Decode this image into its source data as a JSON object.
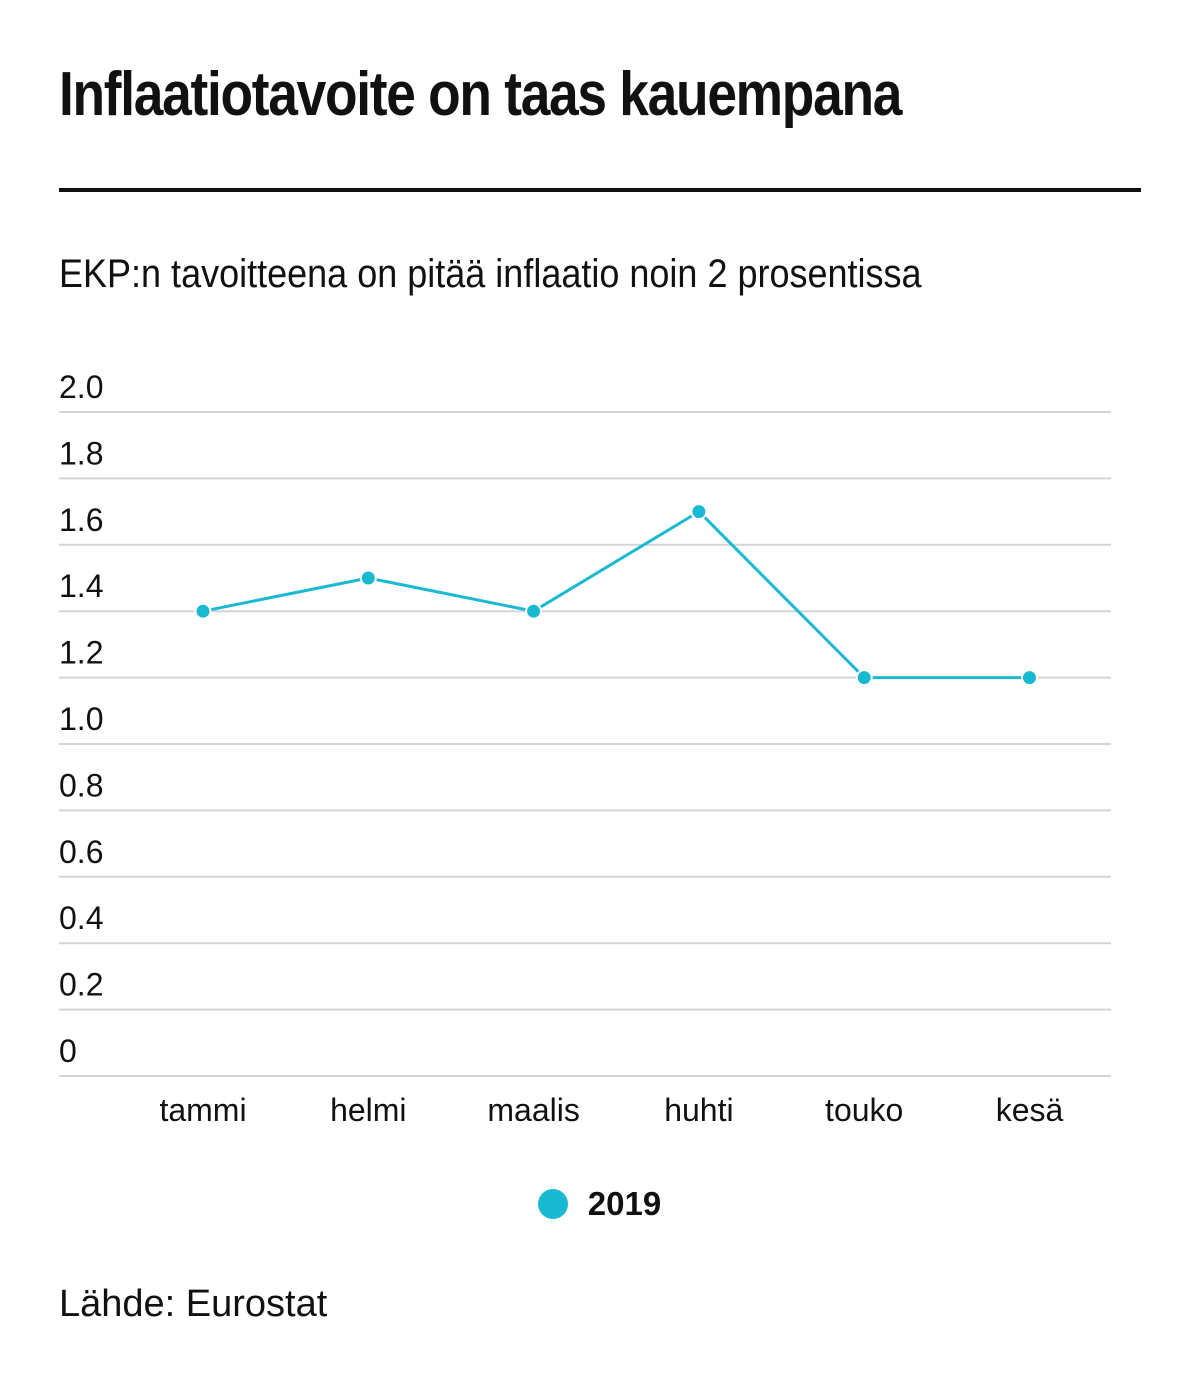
{
  "title": "Inflaatiotavoite on taas kauempana",
  "subtitle": "EKP:n tavoitteena on pitää inflaatio noin 2 prosentissa",
  "source": "Lähde: Eurostat",
  "colors": {
    "series": "#1ab9d2",
    "grid": "#d4d4d4",
    "text": "#111111"
  },
  "chart_data": {
    "type": "line",
    "title": "Inflaatiotavoite on taas kauempana",
    "subtitle": "EKP:n tavoitteena on pitää inflaatio noin 2 prosentissa",
    "xlabel": "",
    "ylabel": "",
    "categories": [
      "tammi",
      "helmi",
      "maalis",
      "huhti",
      "touko",
      "kesä"
    ],
    "series": [
      {
        "name": "2019",
        "values": [
          1.4,
          1.5,
          1.4,
          1.7,
          1.2,
          1.2
        ]
      }
    ],
    "ylim": [
      0,
      2.0
    ],
    "yticks": [
      "0",
      "0.2",
      "0.4",
      "0.6",
      "0.8",
      "1.0",
      "1.2",
      "1.4",
      "1.6",
      "1.8",
      "2.0"
    ],
    "grid": true,
    "legend": "bottom-center"
  }
}
